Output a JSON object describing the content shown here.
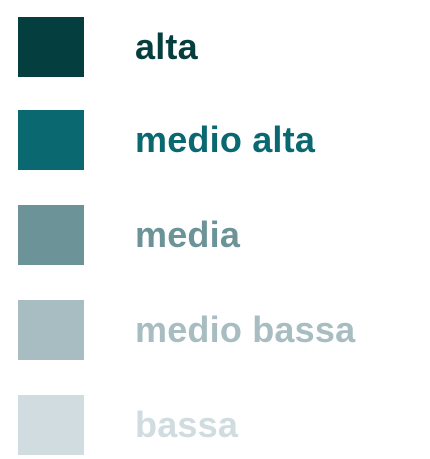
{
  "legend": {
    "items": [
      {
        "label": "alta",
        "color": "#053e3f"
      },
      {
        "label": "medio alta",
        "color": "#0a6870"
      },
      {
        "label": "media",
        "color": "#6c9397"
      },
      {
        "label": "medio bassa",
        "color": "#a7bdc1"
      },
      {
        "label": "bassa",
        "color": "#d0dcdf"
      }
    ]
  }
}
